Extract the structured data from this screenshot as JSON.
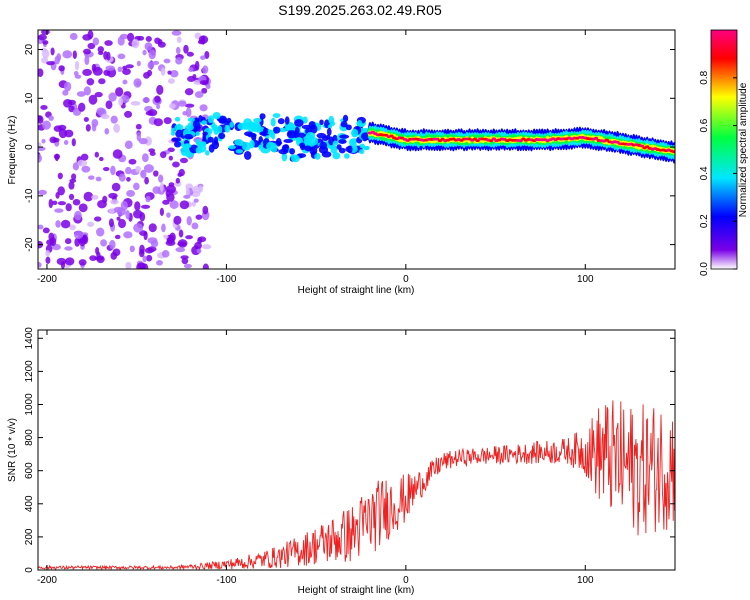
{
  "chart_data": [
    {
      "type": "heatmap",
      "title": "S199.2025.263.02.49.R05",
      "xlabel": "Height of straight line (km)",
      "ylabel": "Frequency (Hz)",
      "xlim": [
        -205,
        150
      ],
      "ylim": [
        -25,
        24
      ],
      "xticks": [
        "-200",
        "-100",
        "0",
        "100"
      ],
      "yticks": [
        "-20",
        "-10",
        "0",
        "10",
        "20"
      ],
      "colorbar": {
        "label": "Normalized spectral amplitude",
        "ticks": [
          "0.0",
          "0.2",
          "0.4",
          "0.6",
          "0.8"
        ],
        "range": [
          0,
          1
        ],
        "colors": [
          "#ffffff",
          "#7a00e6",
          "#0000ff",
          "#00e6ff",
          "#00ff40",
          "#ffff00",
          "#ff0000",
          "#ff0080"
        ]
      },
      "features": [
        {
          "region": "scattered noise",
          "x_range": [
            -205,
            -110
          ],
          "freq_range": [
            -25,
            24
          ],
          "amplitude": 0.15
        },
        {
          "region": "broadband signal",
          "x_range": [
            -130,
            -20
          ],
          "freq_center": 2,
          "freq_halfwidth": 4,
          "amplitude": 0.3
        },
        {
          "region": "narrow tone",
          "x_range": [
            -20,
            150
          ],
          "freq_center_path": [
            [
              -20,
              3
            ],
            [
              0,
              1.5
            ],
            [
              80,
              1.5
            ],
            [
              100,
              2
            ],
            [
              150,
              -1
            ]
          ],
          "amplitude": 0.9
        }
      ]
    },
    {
      "type": "line",
      "xlabel": "Height of straight line (km)",
      "ylabel": "SNR (10 * v/v)",
      "xlim": [
        -205,
        150
      ],
      "ylim": [
        0,
        1450
      ],
      "xticks": [
        "-200",
        "-100",
        "0",
        "100"
      ],
      "yticks": [
        "0",
        "200",
        "400",
        "600",
        "800",
        "1000",
        "1200",
        "1400"
      ],
      "color": "#ee2020",
      "envelope": {
        "x": [
          -205,
          -130,
          -110,
          -90,
          -70,
          -50,
          -30,
          -20,
          -10,
          0,
          10,
          20,
          30,
          60,
          90,
          100,
          110,
          130,
          150
        ],
        "mean": [
          15,
          15,
          25,
          45,
          80,
          150,
          220,
          300,
          380,
          430,
          540,
          650,
          680,
          700,
          720,
          720,
          700,
          600,
          650
        ],
        "noise": [
          10,
          10,
          20,
          40,
          70,
          120,
          180,
          220,
          200,
          150,
          80,
          60,
          50,
          60,
          80,
          150,
          350,
          400,
          400
        ]
      }
    }
  ]
}
